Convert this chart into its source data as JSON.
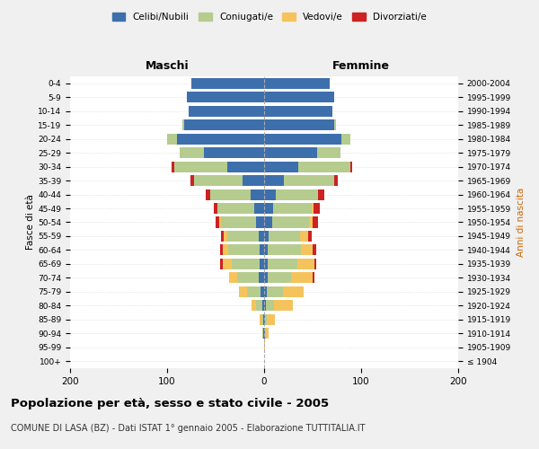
{
  "age_groups": [
    "100+",
    "95-99",
    "90-94",
    "85-89",
    "80-84",
    "75-79",
    "70-74",
    "65-69",
    "60-64",
    "55-59",
    "50-54",
    "45-49",
    "40-44",
    "35-39",
    "30-34",
    "25-29",
    "20-24",
    "15-19",
    "10-14",
    "5-9",
    "0-4"
  ],
  "birth_years": [
    "≤ 1904",
    "1905-1909",
    "1910-1914",
    "1915-1919",
    "1920-1924",
    "1925-1929",
    "1930-1934",
    "1935-1939",
    "1940-1944",
    "1945-1949",
    "1950-1954",
    "1955-1959",
    "1960-1964",
    "1965-1969",
    "1970-1974",
    "1975-1979",
    "1980-1984",
    "1985-1989",
    "1990-1994",
    "1995-1999",
    "2000-2004"
  ],
  "maschi_celibi": [
    0,
    0,
    1,
    1,
    2,
    4,
    6,
    5,
    5,
    6,
    8,
    10,
    14,
    22,
    38,
    62,
    90,
    82,
    78,
    80,
    75
  ],
  "maschi_coniugati": [
    0,
    0,
    1,
    2,
    6,
    14,
    22,
    28,
    32,
    32,
    36,
    38,
    42,
    50,
    55,
    25,
    10,
    2,
    0,
    0,
    0
  ],
  "maschi_vedovi": [
    0,
    0,
    0,
    2,
    5,
    8,
    8,
    10,
    6,
    4,
    2,
    0,
    0,
    0,
    0,
    0,
    0,
    0,
    0,
    0,
    0
  ],
  "maschi_divorziati": [
    0,
    0,
    0,
    0,
    0,
    0,
    0,
    2,
    2,
    2,
    4,
    4,
    4,
    4,
    2,
    0,
    0,
    0,
    0,
    0,
    0
  ],
  "femmine_celibi": [
    0,
    0,
    1,
    1,
    2,
    3,
    4,
    4,
    4,
    5,
    8,
    9,
    12,
    20,
    35,
    55,
    80,
    72,
    70,
    72,
    68
  ],
  "femmine_coniugati": [
    0,
    0,
    1,
    2,
    8,
    16,
    24,
    30,
    34,
    32,
    38,
    40,
    44,
    52,
    54,
    24,
    9,
    2,
    0,
    0,
    0
  ],
  "femmine_vedovi": [
    0,
    1,
    3,
    8,
    20,
    22,
    22,
    18,
    12,
    8,
    4,
    2,
    0,
    0,
    0,
    0,
    0,
    0,
    0,
    0,
    0
  ],
  "femmine_divorziati": [
    0,
    0,
    0,
    0,
    0,
    0,
    2,
    2,
    4,
    4,
    6,
    6,
    6,
    4,
    2,
    0,
    0,
    0,
    0,
    0,
    0
  ],
  "colors": {
    "celibi": "#3d6fac",
    "coniugati": "#b5cc8e",
    "vedovi": "#f5c35c",
    "divorziati": "#cc2222"
  },
  "xlim": 200,
  "title": "Popolazione per età, sesso e stato civile - 2005",
  "subtitle": "COMUNE DI LASA (BZ) - Dati ISTAT 1° gennaio 2005 - Elaborazione TUTTITALIA.IT",
  "ylabel_left": "Fasce di età",
  "ylabel_right": "Anni di nascita",
  "xlabel_maschi": "Maschi",
  "xlabel_femmine": "Femmine",
  "bg_color": "#f0f0f0",
  "plot_bg": "#ffffff"
}
